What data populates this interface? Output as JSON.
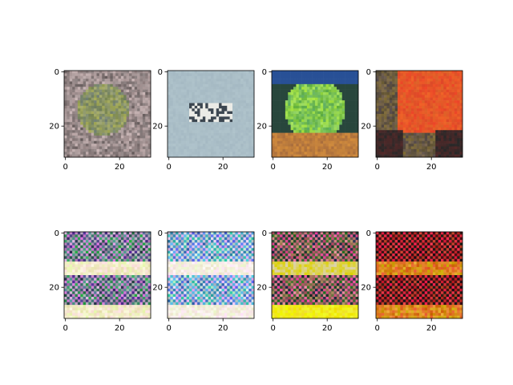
{
  "chart_data": [
    {
      "type": "image",
      "xlim": [
        -0.5,
        31.5
      ],
      "ylim": [
        31.5,
        -0.5
      ],
      "xticks": [
        0,
        20
      ],
      "yticks": [
        0,
        20
      ]
    },
    {
      "type": "image",
      "xlim": [
        -0.5,
        31.5
      ],
      "ylim": [
        31.5,
        -0.5
      ],
      "xticks": [
        0,
        20
      ],
      "yticks": [
        0,
        20
      ]
    },
    {
      "type": "image",
      "xlim": [
        -0.5,
        31.5
      ],
      "ylim": [
        31.5,
        -0.5
      ],
      "xticks": [
        0,
        20
      ],
      "yticks": [
        0,
        20
      ]
    },
    {
      "type": "image",
      "xlim": [
        -0.5,
        31.5
      ],
      "ylim": [
        31.5,
        -0.5
      ],
      "xticks": [
        0,
        20
      ],
      "yticks": [
        0,
        20
      ]
    },
    {
      "type": "image",
      "xlim": [
        -0.5,
        31.5
      ],
      "ylim": [
        31.5,
        -0.5
      ],
      "xticks": [
        0,
        20
      ],
      "yticks": [
        0,
        20
      ]
    },
    {
      "type": "image",
      "xlim": [
        -0.5,
        31.5
      ],
      "ylim": [
        31.5,
        -0.5
      ],
      "xticks": [
        0,
        20
      ],
      "yticks": [
        0,
        20
      ]
    },
    {
      "type": "image",
      "xlim": [
        -0.5,
        31.5
      ],
      "ylim": [
        31.5,
        -0.5
      ],
      "xticks": [
        0,
        20
      ],
      "yticks": [
        0,
        20
      ]
    },
    {
      "type": "image",
      "xlim": [
        -0.5,
        31.5
      ],
      "ylim": [
        31.5,
        -0.5
      ],
      "xticks": [
        0,
        20
      ],
      "yticks": [
        0,
        20
      ]
    }
  ]
}
